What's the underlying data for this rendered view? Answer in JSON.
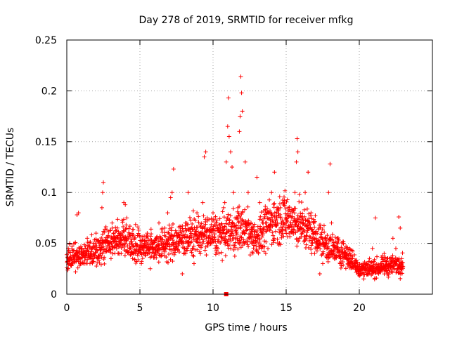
{
  "chart_data": {
    "type": "scatter",
    "title": "Day 278 of 2019, SRMTID for receiver mfkg",
    "xlabel": "GPS time / hours",
    "ylabel": "SRMTID / TECUs",
    "xlim": [
      0,
      25
    ],
    "ylim": [
      0,
      0.25
    ],
    "x_ticks": [
      0,
      5,
      10,
      15,
      20
    ],
    "y_ticks": [
      0,
      0.05,
      0.1,
      0.15,
      0.2,
      0.25
    ],
    "x_tick_labels": [
      "0",
      "5",
      "10",
      "15",
      "20"
    ],
    "y_tick_labels": [
      "0",
      "0.05",
      "0.1",
      "0.15",
      "0.2",
      "0.25"
    ],
    "grid": true,
    "marker": "+",
    "color": "#ff0000",
    "baseline_marker": {
      "x": 10.9,
      "y": 0.0
    },
    "series": [
      {
        "name": "SRMTID",
        "trend_x": [
          0,
          1,
          2,
          3,
          4,
          5,
          6,
          7,
          8,
          9,
          10,
          11,
          12,
          13,
          14,
          15,
          16,
          17,
          18,
          19,
          20,
          21,
          22,
          23
        ],
        "trend_y": [
          0.035,
          0.038,
          0.045,
          0.052,
          0.055,
          0.047,
          0.047,
          0.05,
          0.055,
          0.058,
          0.058,
          0.06,
          0.065,
          0.055,
          0.072,
          0.075,
          0.068,
          0.058,
          0.045,
          0.04,
          0.025,
          0.025,
          0.028,
          0.03
        ],
        "points": [
          [
            0.05,
            0.032
          ],
          [
            0.1,
            0.045
          ],
          [
            0.2,
            0.05
          ],
          [
            0.3,
            0.028
          ],
          [
            0.4,
            0.038
          ],
          [
            0.6,
            0.022
          ],
          [
            0.7,
            0.078
          ],
          [
            0.8,
            0.08
          ],
          [
            0.9,
            0.035
          ],
          [
            1.0,
            0.045
          ],
          [
            1.2,
            0.03
          ],
          [
            1.4,
            0.055
          ],
          [
            1.6,
            0.04
          ],
          [
            1.8,
            0.05
          ],
          [
            2.0,
            0.06
          ],
          [
            2.2,
            0.035
          ],
          [
            2.4,
            0.085
          ],
          [
            2.45,
            0.1
          ],
          [
            2.5,
            0.11
          ],
          [
            2.7,
            0.045
          ],
          [
            2.9,
            0.05
          ],
          [
            3.1,
            0.065
          ],
          [
            3.3,
            0.055
          ],
          [
            3.5,
            0.04
          ],
          [
            3.7,
            0.06
          ],
          [
            3.9,
            0.09
          ],
          [
            4.0,
            0.088
          ],
          [
            4.1,
            0.075
          ],
          [
            4.3,
            0.045
          ],
          [
            4.5,
            0.035
          ],
          [
            4.7,
            0.05
          ],
          [
            4.9,
            0.04
          ],
          [
            5.1,
            0.03
          ],
          [
            5.3,
            0.05
          ],
          [
            5.5,
            0.06
          ],
          [
            5.7,
            0.025
          ],
          [
            5.9,
            0.045
          ],
          [
            6.1,
            0.055
          ],
          [
            6.3,
            0.07
          ],
          [
            6.5,
            0.04
          ],
          [
            6.7,
            0.065
          ],
          [
            6.9,
            0.08
          ],
          [
            7.1,
            0.095
          ],
          [
            7.2,
            0.1
          ],
          [
            7.3,
            0.123
          ],
          [
            7.5,
            0.06
          ],
          [
            7.7,
            0.05
          ],
          [
            7.9,
            0.02
          ],
          [
            8.1,
            0.07
          ],
          [
            8.3,
            0.1
          ],
          [
            8.5,
            0.065
          ],
          [
            8.7,
            0.03
          ],
          [
            8.9,
            0.08
          ],
          [
            9.1,
            0.06
          ],
          [
            9.3,
            0.09
          ],
          [
            9.4,
            0.135
          ],
          [
            9.5,
            0.14
          ],
          [
            9.6,
            0.075
          ],
          [
            9.8,
            0.05
          ],
          [
            10.0,
            0.08
          ],
          [
            10.2,
            0.07
          ],
          [
            10.4,
            0.04
          ],
          [
            10.6,
            0.06
          ],
          [
            10.8,
            0.09
          ],
          [
            10.9,
            0.13
          ],
          [
            11.0,
            0.165
          ],
          [
            11.05,
            0.193
          ],
          [
            11.1,
            0.155
          ],
          [
            11.2,
            0.14
          ],
          [
            11.3,
            0.125
          ],
          [
            11.4,
            0.1
          ],
          [
            11.5,
            0.075
          ],
          [
            11.6,
            0.06
          ],
          [
            11.7,
            0.085
          ],
          [
            11.8,
            0.16
          ],
          [
            11.85,
            0.175
          ],
          [
            11.9,
            0.214
          ],
          [
            11.95,
            0.198
          ],
          [
            12.0,
            0.18
          ],
          [
            12.2,
            0.13
          ],
          [
            12.4,
            0.1
          ],
          [
            12.6,
            0.07
          ],
          [
            12.8,
            0.05
          ],
          [
            13.0,
            0.115
          ],
          [
            13.2,
            0.09
          ],
          [
            13.4,
            0.06
          ],
          [
            13.6,
            0.04
          ],
          [
            13.8,
            0.08
          ],
          [
            14.0,
            0.1
          ],
          [
            14.2,
            0.12
          ],
          [
            14.4,
            0.07
          ],
          [
            14.6,
            0.085
          ],
          [
            14.8,
            0.09
          ],
          [
            15.0,
            0.07
          ],
          [
            15.2,
            0.06
          ],
          [
            15.4,
            0.08
          ],
          [
            15.6,
            0.1
          ],
          [
            15.7,
            0.13
          ],
          [
            15.75,
            0.153
          ],
          [
            15.8,
            0.14
          ],
          [
            15.9,
            0.075
          ],
          [
            16.1,
            0.06
          ],
          [
            16.3,
            0.1
          ],
          [
            16.5,
            0.12
          ],
          [
            16.7,
            0.08
          ],
          [
            16.9,
            0.07
          ],
          [
            17.1,
            0.045
          ],
          [
            17.3,
            0.02
          ],
          [
            17.5,
            0.03
          ],
          [
            17.7,
            0.05
          ],
          [
            17.9,
            0.1
          ],
          [
            18.0,
            0.128
          ],
          [
            18.1,
            0.07
          ],
          [
            18.3,
            0.045
          ],
          [
            18.5,
            0.055
          ],
          [
            18.7,
            0.03
          ],
          [
            18.9,
            0.05
          ],
          [
            19.1,
            0.045
          ],
          [
            19.3,
            0.04
          ],
          [
            19.5,
            0.035
          ],
          [
            19.7,
            0.03
          ],
          [
            19.9,
            0.025
          ],
          [
            20.1,
            0.02
          ],
          [
            20.3,
            0.015
          ],
          [
            20.5,
            0.03
          ],
          [
            20.7,
            0.035
          ],
          [
            20.9,
            0.045
          ],
          [
            21.1,
            0.075
          ],
          [
            21.3,
            0.025
          ],
          [
            21.5,
            0.03
          ],
          [
            21.7,
            0.04
          ],
          [
            21.9,
            0.035
          ],
          [
            22.1,
            0.03
          ],
          [
            22.3,
            0.055
          ],
          [
            22.5,
            0.045
          ],
          [
            22.7,
            0.076
          ],
          [
            22.8,
            0.065
          ],
          [
            22.9,
            0.035
          ]
        ]
      }
    ]
  }
}
